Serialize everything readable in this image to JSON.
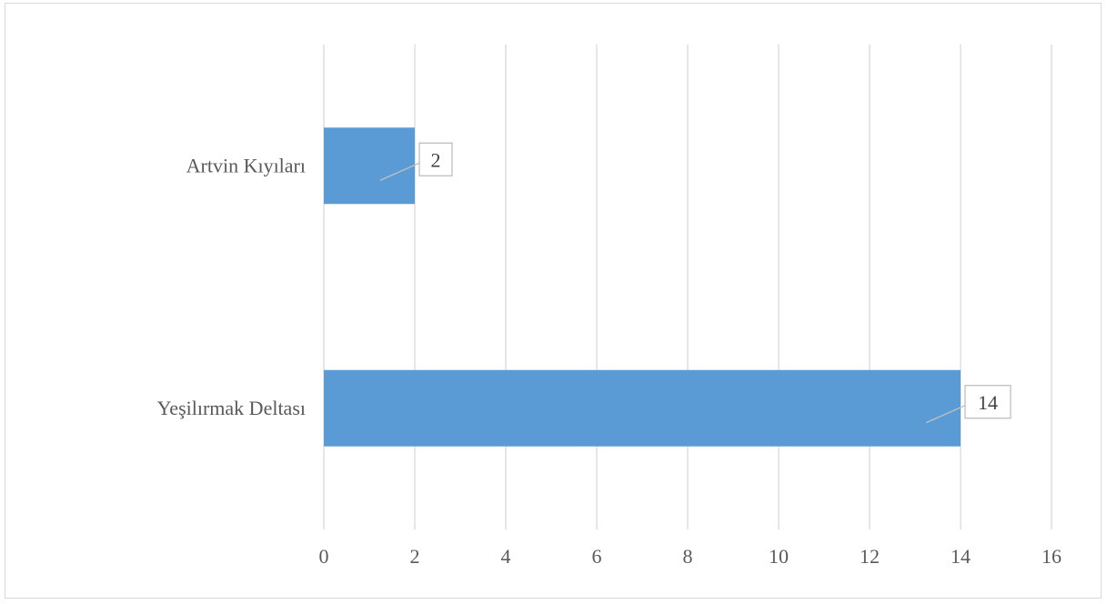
{
  "chart_data": {
    "type": "bar",
    "orientation": "horizontal",
    "categories": [
      "Artvin Kıyıları",
      "Yeşilırmak Deltası"
    ],
    "values": [
      2,
      14
    ],
    "xlim": [
      0,
      16
    ],
    "x_ticks": [
      0,
      2,
      4,
      6,
      8,
      10,
      12,
      14,
      16
    ],
    "grid": true,
    "legend": "none",
    "colors": {
      "bar": "#5b9bd5",
      "grid": "#d9d9d9",
      "text": "#595959",
      "border": "#d9d9d9"
    }
  }
}
